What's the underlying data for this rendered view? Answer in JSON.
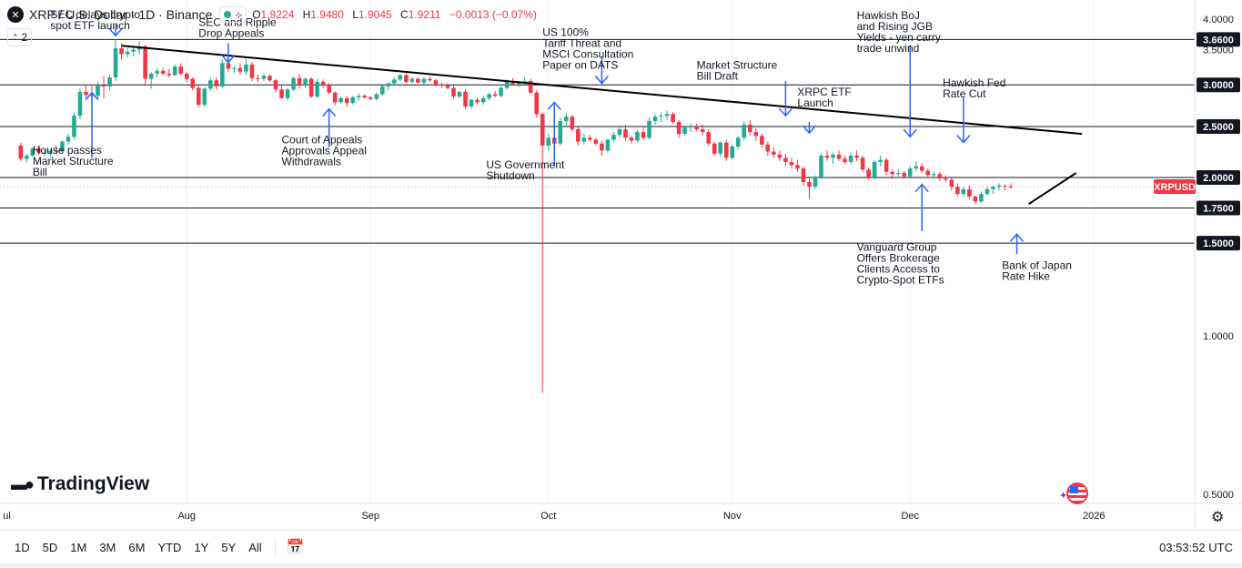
{
  "header": {
    "symbol_icon_name": "x-close-icon",
    "title": "XRP / U.S. Dollar · 1D · Binance",
    "ohlc": {
      "o_label": "O",
      "o_value": "1.9224",
      "h_label": "H",
      "h_value": "1.9480",
      "l_label": "L",
      "l_value": "1.9045",
      "c_label": "C",
      "c_value": "1.9211",
      "change": "−0.0013 (−0.07%)"
    },
    "collapse_label": "2"
  },
  "brand": {
    "logo_text": "TradingView"
  },
  "toolbar": {
    "timeframes": [
      "1D",
      "5D",
      "1M",
      "3M",
      "6M",
      "YTD",
      "1Y",
      "5Y",
      "All"
    ],
    "clock": "03:53:52 UTC"
  },
  "chart_data": {
    "type": "candlestick",
    "symbol": "XRPUSD",
    "price_tag": "XRPUSD",
    "last_price": 1.9211,
    "y_scale": "log",
    "ylim": [
      0.48,
      4.35
    ],
    "y_ticks": [
      "4.0000",
      "3.5000",
      "3.0000",
      "2.5000",
      "2.0000",
      "1.0000",
      "0.5000"
    ],
    "x_labels": [
      {
        "label": "ul",
        "day": -3
      },
      {
        "label": "Aug",
        "day": 28
      },
      {
        "label": "Sep",
        "day": 59
      },
      {
        "label": "Oct",
        "day": 89
      },
      {
        "label": "Nov",
        "day": 120
      },
      {
        "label": "Dec",
        "day": 150
      },
      {
        "label": "2026",
        "day": 181
      }
    ],
    "x_day_range": [
      -3.5,
      198
    ],
    "horizontal_levels": [
      {
        "price": 3.66,
        "label": "3.6600"
      },
      {
        "price": 3.0,
        "label": "3.0000"
      },
      {
        "price": 2.5,
        "label": "2.5000"
      },
      {
        "price": 2.0,
        "label": "2.0000"
      },
      {
        "price": 1.75,
        "label": "1.7500"
      },
      {
        "price": 1.5,
        "label": "1.5000"
      }
    ],
    "trendlines": [
      {
        "name": "descending-trendline",
        "from": {
          "day": 17,
          "price": 3.56
        },
        "to": {
          "day": 179,
          "price": 2.42
        }
      },
      {
        "name": "ascending-trendline",
        "from": {
          "day": 170,
          "price": 1.78
        },
        "to": {
          "day": 178,
          "price": 2.04
        }
      }
    ],
    "candles": [
      [
        2.3,
        2.33,
        2.15,
        2.17
      ],
      [
        2.17,
        2.22,
        2.14,
        2.2
      ],
      [
        2.2,
        2.28,
        2.19,
        2.27
      ],
      [
        2.27,
        2.3,
        2.21,
        2.23
      ],
      [
        2.23,
        2.26,
        2.2,
        2.23
      ],
      [
        2.23,
        2.26,
        2.19,
        2.25
      ],
      [
        2.25,
        2.3,
        2.22,
        2.24
      ],
      [
        2.24,
        2.35,
        2.22,
        2.34
      ],
      [
        2.34,
        2.42,
        2.31,
        2.39
      ],
      [
        2.39,
        2.66,
        2.36,
        2.62
      ],
      [
        2.62,
        2.95,
        2.58,
        2.91
      ],
      [
        2.91,
        3.0,
        2.82,
        2.87
      ],
      [
        2.87,
        2.99,
        2.7,
        2.86
      ],
      [
        2.86,
        3.04,
        2.83,
        2.99
      ],
      [
        2.99,
        3.12,
        2.83,
        2.98
      ],
      [
        2.98,
        3.14,
        2.92,
        3.1
      ],
      [
        3.1,
        3.66,
        3.05,
        3.52
      ],
      [
        3.52,
        3.6,
        3.35,
        3.43
      ],
      [
        3.43,
        3.52,
        3.38,
        3.47
      ],
      [
        3.47,
        3.56,
        3.4,
        3.5
      ],
      [
        3.5,
        3.63,
        3.42,
        3.55
      ],
      [
        3.55,
        3.57,
        3.01,
        3.08
      ],
      [
        3.08,
        3.17,
        2.95,
        3.15
      ],
      [
        3.15,
        3.23,
        3.1,
        3.19
      ],
      [
        3.19,
        3.23,
        3.13,
        3.15
      ],
      [
        3.15,
        3.22,
        3.1,
        3.13
      ],
      [
        3.13,
        3.28,
        3.12,
        3.25
      ],
      [
        3.25,
        3.3,
        3.12,
        3.15
      ],
      [
        3.15,
        3.18,
        3.03,
        3.08
      ],
      [
        3.08,
        3.1,
        2.93,
        2.96
      ],
      [
        2.96,
        3.0,
        2.72,
        2.75
      ],
      [
        2.75,
        2.97,
        2.72,
        2.95
      ],
      [
        2.95,
        3.1,
        2.92,
        3.06
      ],
      [
        3.06,
        3.1,
        2.94,
        2.98
      ],
      [
        2.98,
        3.35,
        2.96,
        3.3
      ],
      [
        3.3,
        3.34,
        3.17,
        3.22
      ],
      [
        3.22,
        3.26,
        3.16,
        3.23
      ],
      [
        3.23,
        3.3,
        3.14,
        3.18
      ],
      [
        3.18,
        3.36,
        3.14,
        3.28
      ],
      [
        3.28,
        3.32,
        3.05,
        3.09
      ],
      [
        3.09,
        3.14,
        3.04,
        3.08
      ],
      [
        3.08,
        3.16,
        3.05,
        3.12
      ],
      [
        3.12,
        3.14,
        3.04,
        3.06
      ],
      [
        3.06,
        3.08,
        2.9,
        2.94
      ],
      [
        2.94,
        3.0,
        2.82,
        2.83
      ],
      [
        2.83,
        2.96,
        2.8,
        2.94
      ],
      [
        2.94,
        3.11,
        2.92,
        3.09
      ],
      [
        3.09,
        3.14,
        2.95,
        2.99
      ],
      [
        2.99,
        3.1,
        2.96,
        3.08
      ],
      [
        3.08,
        3.1,
        2.83,
        2.85
      ],
      [
        2.85,
        3.08,
        2.83,
        3.04
      ],
      [
        3.04,
        3.07,
        2.96,
        3.0
      ],
      [
        3.0,
        3.02,
        2.88,
        2.9
      ],
      [
        2.9,
        2.92,
        2.74,
        2.78
      ],
      [
        2.78,
        2.85,
        2.76,
        2.83
      ],
      [
        2.83,
        2.86,
        2.72,
        2.77
      ],
      [
        2.77,
        2.86,
        2.75,
        2.84
      ],
      [
        2.84,
        2.89,
        2.8,
        2.86
      ],
      [
        2.86,
        2.88,
        2.82,
        2.84
      ],
      [
        2.84,
        2.86,
        2.8,
        2.82
      ],
      [
        2.82,
        2.9,
        2.8,
        2.88
      ],
      [
        2.88,
        2.99,
        2.86,
        2.98
      ],
      [
        2.98,
        3.03,
        2.93,
        3.02
      ],
      [
        3.02,
        3.1,
        3.0,
        3.07
      ],
      [
        3.07,
        3.14,
        3.05,
        3.13
      ],
      [
        3.13,
        3.16,
        3.02,
        3.04
      ],
      [
        3.04,
        3.1,
        3.02,
        3.08
      ],
      [
        3.08,
        3.1,
        3.02,
        3.03
      ],
      [
        3.03,
        3.1,
        3.0,
        3.08
      ],
      [
        3.08,
        3.12,
        3.04,
        3.06
      ],
      [
        3.06,
        3.08,
        2.98,
        3.0
      ],
      [
        3.0,
        3.03,
        2.96,
        2.99
      ],
      [
        2.99,
        3.02,
        2.94,
        2.96
      ],
      [
        2.96,
        2.99,
        2.82,
        2.85
      ],
      [
        2.85,
        2.92,
        2.83,
        2.91
      ],
      [
        2.91,
        2.94,
        2.7,
        2.73
      ],
      [
        2.73,
        2.82,
        2.7,
        2.81
      ],
      [
        2.81,
        2.84,
        2.75,
        2.78
      ],
      [
        2.78,
        2.86,
        2.75,
        2.83
      ],
      [
        2.83,
        2.9,
        2.8,
        2.88
      ],
      [
        2.88,
        2.92,
        2.84,
        2.86
      ],
      [
        2.86,
        2.98,
        2.84,
        2.96
      ],
      [
        2.96,
        3.07,
        2.94,
        3.05
      ],
      [
        3.05,
        3.09,
        2.99,
        3.01
      ],
      [
        3.01,
        3.05,
        2.97,
        3.03
      ],
      [
        3.03,
        3.1,
        3.0,
        3.05
      ],
      [
        3.05,
        3.08,
        2.88,
        2.9
      ],
      [
        2.9,
        2.93,
        2.6,
        2.64
      ],
      [
        2.64,
        2.66,
        0.78,
        2.3
      ],
      [
        2.3,
        2.42,
        2.25,
        2.38
      ],
      [
        2.38,
        2.45,
        2.27,
        2.32
      ],
      [
        2.32,
        2.6,
        2.3,
        2.56
      ],
      [
        2.56,
        2.65,
        2.5,
        2.61
      ],
      [
        2.61,
        2.63,
        2.45,
        2.47
      ],
      [
        2.47,
        2.5,
        2.3,
        2.34
      ],
      [
        2.34,
        2.42,
        2.31,
        2.38
      ],
      [
        2.38,
        2.41,
        2.34,
        2.36
      ],
      [
        2.36,
        2.38,
        2.3,
        2.32
      ],
      [
        2.32,
        2.35,
        2.2,
        2.25
      ],
      [
        2.25,
        2.37,
        2.23,
        2.36
      ],
      [
        2.36,
        2.44,
        2.33,
        2.41
      ],
      [
        2.41,
        2.49,
        2.38,
        2.47
      ],
      [
        2.47,
        2.52,
        2.35,
        2.38
      ],
      [
        2.38,
        2.4,
        2.32,
        2.35
      ],
      [
        2.35,
        2.46,
        2.33,
        2.44
      ],
      [
        2.44,
        2.5,
        2.36,
        2.38
      ],
      [
        2.38,
        2.6,
        2.36,
        2.56
      ],
      [
        2.56,
        2.64,
        2.52,
        2.61
      ],
      [
        2.61,
        2.66,
        2.55,
        2.62
      ],
      [
        2.62,
        2.68,
        2.57,
        2.64
      ],
      [
        2.64,
        2.66,
        2.53,
        2.55
      ],
      [
        2.55,
        2.57,
        2.38,
        2.42
      ],
      [
        2.42,
        2.5,
        2.4,
        2.49
      ],
      [
        2.49,
        2.53,
        2.44,
        2.5
      ],
      [
        2.5,
        2.53,
        2.45,
        2.47
      ],
      [
        2.47,
        2.52,
        2.4,
        2.44
      ],
      [
        2.44,
        2.47,
        2.3,
        2.32
      ],
      [
        2.32,
        2.34,
        2.2,
        2.22
      ],
      [
        2.22,
        2.34,
        2.19,
        2.33
      ],
      [
        2.33,
        2.36,
        2.15,
        2.18
      ],
      [
        2.18,
        2.31,
        2.16,
        2.29
      ],
      [
        2.29,
        2.4,
        2.26,
        2.38
      ],
      [
        2.38,
        2.56,
        2.35,
        2.52
      ],
      [
        2.52,
        2.57,
        2.4,
        2.44
      ],
      [
        2.44,
        2.48,
        2.35,
        2.4
      ],
      [
        2.4,
        2.42,
        2.28,
        2.31
      ],
      [
        2.31,
        2.34,
        2.2,
        2.24
      ],
      [
        2.24,
        2.28,
        2.18,
        2.21
      ],
      [
        2.21,
        2.25,
        2.15,
        2.18
      ],
      [
        2.18,
        2.22,
        2.1,
        2.14
      ],
      [
        2.14,
        2.18,
        2.08,
        2.11
      ],
      [
        2.11,
        2.16,
        2.05,
        2.08
      ],
      [
        2.08,
        2.1,
        1.93,
        1.96
      ],
      [
        1.96,
        2.01,
        1.82,
        1.92
      ],
      [
        1.92,
        2.02,
        1.9,
        2.0
      ],
      [
        2.0,
        2.22,
        1.98,
        2.2
      ],
      [
        2.2,
        2.25,
        2.15,
        2.18
      ],
      [
        2.18,
        2.23,
        2.12,
        2.21
      ],
      [
        2.21,
        2.25,
        2.15,
        2.17
      ],
      [
        2.17,
        2.2,
        2.12,
        2.14
      ],
      [
        2.14,
        2.23,
        2.12,
        2.2
      ],
      [
        2.2,
        2.25,
        2.15,
        2.18
      ],
      [
        2.18,
        2.2,
        2.05,
        2.07
      ],
      [
        2.07,
        2.09,
        1.98,
        2.0
      ],
      [
        2.0,
        2.16,
        1.98,
        2.14
      ],
      [
        2.14,
        2.2,
        2.1,
        2.16
      ],
      [
        2.16,
        2.18,
        2.02,
        2.05
      ],
      [
        2.05,
        2.07,
        1.99,
        2.03
      ],
      [
        2.03,
        2.07,
        2.01,
        2.04
      ],
      [
        2.04,
        2.06,
        1.99,
        2.01
      ],
      [
        2.01,
        2.1,
        2.0,
        2.08
      ],
      [
        2.08,
        2.15,
        2.05,
        2.1
      ],
      [
        2.1,
        2.13,
        2.04,
        2.06
      ],
      [
        2.06,
        2.08,
        2.0,
        2.02
      ],
      [
        2.02,
        2.05,
        2.0,
        2.03
      ],
      [
        2.03,
        2.05,
        1.97,
        1.99
      ],
      [
        1.99,
        2.02,
        1.96,
        1.98
      ],
      [
        1.98,
        2.0,
        1.89,
        1.92
      ],
      [
        1.92,
        1.95,
        1.84,
        1.86
      ],
      [
        1.86,
        1.92,
        1.84,
        1.9
      ],
      [
        1.9,
        1.93,
        1.82,
        1.84
      ],
      [
        1.84,
        1.85,
        1.78,
        1.8
      ],
      [
        1.8,
        1.88,
        1.79,
        1.86
      ],
      [
        1.86,
        1.92,
        1.85,
        1.9
      ],
      [
        1.9,
        1.93,
        1.86,
        1.92
      ],
      [
        1.92,
        1.95,
        1.89,
        1.93
      ],
      [
        1.93,
        1.94,
        1.89,
        1.922
      ],
      [
        1.922,
        1.948,
        1.9045,
        1.9211
      ]
    ],
    "arrows": [
      {
        "name": "arrow-sec-delays",
        "day": 16,
        "from": 3.9,
        "to": 3.72
      },
      {
        "name": "arrow-house-passes",
        "day": 12,
        "from": 2.18,
        "to": 2.9
      },
      {
        "name": "arrow-sec-ripple",
        "day": 35,
        "from": 3.6,
        "to": 3.31
      },
      {
        "name": "arrow-court-appeals",
        "day": 52,
        "from": 2.28,
        "to": 2.7
      },
      {
        "name": "arrow-shutdown",
        "day": 90,
        "from": 2.1,
        "to": 2.78
      },
      {
        "name": "arrow-tariff",
        "day": 98,
        "from": 3.4,
        "to": 3.02
      },
      {
        "name": "arrow-market-structure",
        "day": 129,
        "from": 3.05,
        "to": 2.62
      },
      {
        "name": "arrow-xrpc-etf",
        "day": 133,
        "from": 2.55,
        "to": 2.43
      },
      {
        "name": "arrow-hawkish-boj",
        "day": 150,
        "from": 3.57,
        "to": 2.39
      },
      {
        "name": "arrow-hawkish-fed",
        "day": 159,
        "from": 2.85,
        "to": 2.33
      },
      {
        "name": "arrow-vanguard",
        "day": 152,
        "from": 1.58,
        "to": 1.94
      },
      {
        "name": "arrow-boj-hike",
        "day": 168,
        "from": 1.43,
        "to": 1.56
      }
    ],
    "annotations": [
      {
        "name": "note-sec-delays",
        "lines": [
          "SEC delays crypto",
          "spot ETF launch"
        ],
        "day": 5,
        "price": 4.02
      },
      {
        "name": "note-house-passes",
        "lines": [
          "House passes",
          "Market Structure",
          "Bill"
        ],
        "day": 2,
        "price": 2.22
      },
      {
        "name": "note-sec-ripple",
        "lines": [
          "SEC and Ripple",
          "Drop Appeals"
        ],
        "day": 30,
        "price": 3.88
      },
      {
        "name": "note-court-appeals",
        "lines": [
          "Court of Appeals",
          "Approvals Appeal",
          "Withdrawals"
        ],
        "day": 44,
        "price": 2.32
      },
      {
        "name": "note-shutdown",
        "lines": [
          "US Government",
          "Shutdown"
        ],
        "day": 78.5,
        "price": 2.08
      },
      {
        "name": "note-tariff",
        "lines": [
          "US 100%",
          "Tariff Threat and",
          "MSCI Consultation",
          "Paper on DATS"
        ],
        "day": 88,
        "price": 3.72
      },
      {
        "name": "note-market-structure",
        "lines": [
          "Market Structure",
          "Bill Draft"
        ],
        "day": 114,
        "price": 3.22
      },
      {
        "name": "note-xrpc-etf",
        "lines": [
          "XRPC ETF",
          "Launch"
        ],
        "day": 131,
        "price": 2.86
      },
      {
        "name": "note-hawkish-boj",
        "lines": [
          "Hawkish BoJ",
          "and Rising JGB",
          "Yields - yen carry",
          "trade unwind"
        ],
        "day": 141,
        "price": 4.0
      },
      {
        "name": "note-hawkish-fed",
        "lines": [
          "Hawkish Fed",
          "Rate Cut"
        ],
        "day": 155.5,
        "price": 2.98
      },
      {
        "name": "note-vanguard",
        "lines": [
          "Vanguard Group",
          "Offers Brokerage",
          "Clients Access to",
          "Crypto-Spot ETFs"
        ],
        "day": 141,
        "price": 1.45
      },
      {
        "name": "note-boj-hike",
        "lines": [
          "Bank of Japan",
          "Rate Hike"
        ],
        "day": 165.5,
        "price": 1.34
      }
    ],
    "colors": {
      "up": "#22ab94",
      "down": "#f23645",
      "arrow": "#2962ff",
      "level": "#131722",
      "price_tag": "#f23645"
    }
  }
}
